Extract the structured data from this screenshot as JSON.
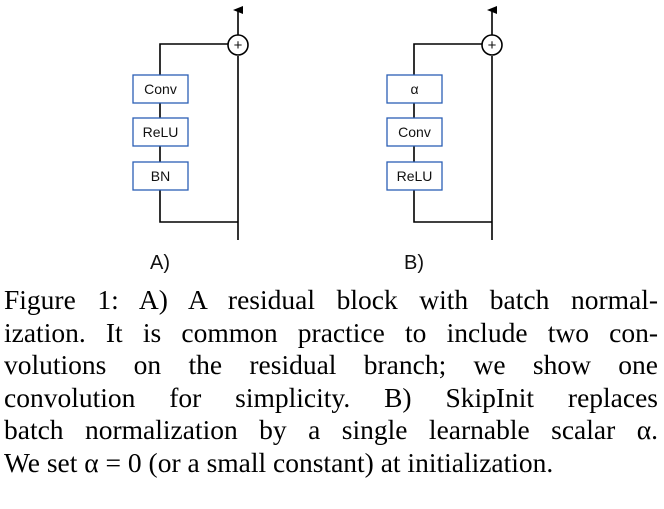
{
  "figure": {
    "panel_a": {
      "label": "A)",
      "blocks": [
        "Conv",
        "ReLU",
        "BN"
      ],
      "sum_symbol": "+"
    },
    "panel_b": {
      "label": "B)",
      "blocks": [
        "α",
        "Conv",
        "ReLU"
      ],
      "sum_symbol": "+"
    }
  },
  "caption": {
    "lines": [
      "Figure 1: A) A residual block with batch normal-",
      "ization. It is common practice to include two con-",
      "volutions on the residual branch; we show one",
      "convolution for simplicity. B) SkipInit replaces",
      "batch normalization by a single learnable scalar α.",
      "We set α = 0 (or a small constant) at initialization."
    ]
  },
  "colors": {
    "box_border": "#2b5fb5",
    "line": "#000000"
  }
}
